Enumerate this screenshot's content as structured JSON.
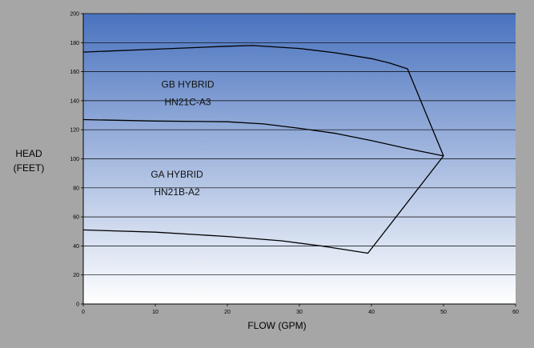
{
  "chart_data": {
    "type": "line",
    "xlabel": "FLOW (GPM)",
    "ylabel": [
      "HEAD",
      "(FEET)"
    ],
    "xlim": [
      0,
      60
    ],
    "ylim": [
      0,
      200
    ],
    "x_ticks": [
      0,
      10,
      20,
      30,
      40,
      50,
      60
    ],
    "y_ticks": [
      0,
      20,
      40,
      60,
      80,
      100,
      120,
      140,
      160,
      180,
      200
    ],
    "grid": "horizontal",
    "background": {
      "top_color": "#4a73bf",
      "bottom_color": "#ffffff"
    },
    "series": [
      {
        "key": "gb",
        "points": [
          [
            0,
            173.5
          ],
          [
            10,
            175.5
          ],
          [
            20,
            177.5
          ],
          [
            23.5,
            178
          ],
          [
            30,
            176
          ],
          [
            35,
            173
          ],
          [
            40,
            169
          ],
          [
            42.5,
            166
          ],
          [
            45,
            162
          ],
          [
            50,
            102
          ]
        ]
      },
      {
        "key": "ga-upper",
        "points": [
          [
            0,
            127
          ],
          [
            10,
            126
          ],
          [
            20,
            125.5
          ],
          [
            25,
            124
          ],
          [
            30,
            121
          ],
          [
            35,
            117.5
          ],
          [
            40,
            112.5
          ],
          [
            45,
            107
          ],
          [
            50,
            102
          ]
        ]
      },
      {
        "key": "ga-lower",
        "points": [
          [
            0,
            51
          ],
          [
            10,
            49.5
          ],
          [
            20,
            46.5
          ],
          [
            27.5,
            43.5
          ],
          [
            33,
            40
          ],
          [
            39.5,
            35
          ],
          [
            50,
            102
          ]
        ]
      }
    ],
    "annotations": [
      {
        "key": "gb-line1",
        "text": "GB HYBRID",
        "x": 14.5,
        "y": 149
      },
      {
        "key": "gb-line2",
        "text": "HN21C-A3",
        "x": 14.5,
        "y": 137
      },
      {
        "key": "ga-line1",
        "text": "GA HYBRID",
        "x": 13,
        "y": 87
      },
      {
        "key": "ga-line2",
        "text": "HN21B-A2",
        "x": 13,
        "y": 75
      }
    ]
  }
}
